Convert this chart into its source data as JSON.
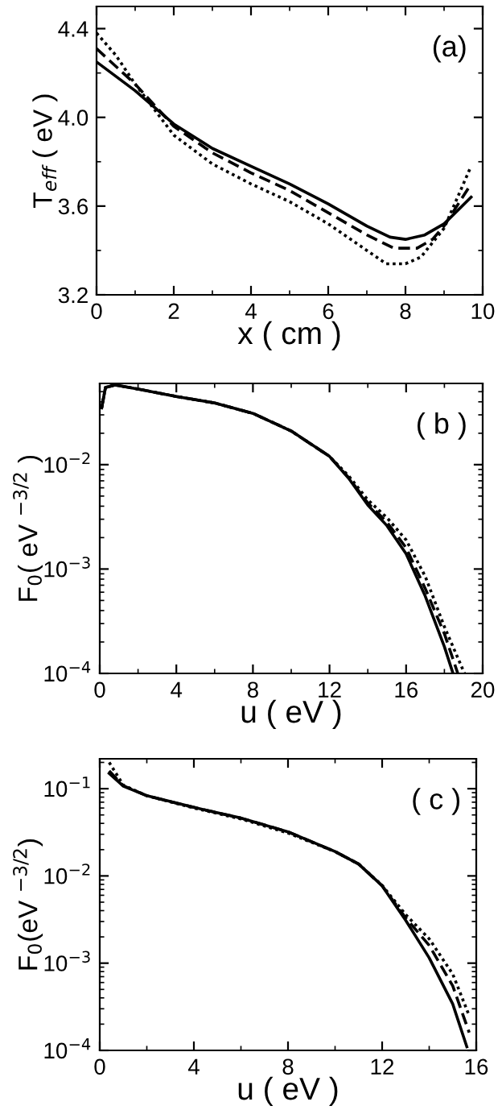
{
  "chart_data": [
    {
      "type": "line",
      "xlabel": "x ( cm )",
      "ylabel": "T$_{eff}$ ( eV )",
      "annotations": [
        "(a)"
      ],
      "xlim": [
        0,
        10
      ],
      "ylim": [
        3.2,
        4.5
      ],
      "xticks": [
        0,
        2,
        4,
        6,
        8,
        10
      ],
      "yticks": [
        3.2,
        3.6,
        {
          "value": 4.0,
          "label": "4.0"
        },
        4.4
      ],
      "grid": false,
      "marker": "none",
      "series": [
        {
          "color": "#000000",
          "line_style": "solid",
          "x": [
            0,
            1,
            2,
            3,
            4,
            5,
            6,
            7,
            7.6,
            8,
            8.5,
            9,
            9.7
          ],
          "values": [
            4.25,
            4.12,
            3.97,
            3.86,
            3.78,
            3.7,
            3.61,
            3.51,
            3.46,
            3.45,
            3.47,
            3.52,
            3.64
          ]
        },
        {
          "color": "#000000",
          "line_style": "dashed",
          "x": [
            0,
            1,
            2,
            3,
            4,
            5,
            6,
            7,
            7.7,
            8.3,
            8.7,
            9,
            9.7
          ],
          "values": [
            4.31,
            4.15,
            3.96,
            3.84,
            3.75,
            3.67,
            3.57,
            3.47,
            3.41,
            3.41,
            3.45,
            3.51,
            3.7
          ]
        },
        {
          "color": "#000000",
          "line_style": "dotted",
          "x": [
            0,
            0.5,
            1,
            2,
            3,
            4,
            5,
            6,
            7,
            7.5,
            8,
            8.4,
            9,
            9.7
          ],
          "values": [
            4.38,
            4.28,
            4.15,
            3.92,
            3.79,
            3.7,
            3.62,
            3.52,
            3.4,
            3.34,
            3.34,
            3.37,
            3.5,
            3.78
          ]
        }
      ]
    },
    {
      "type": "line",
      "xlabel": "u ( eV )",
      "ylabel": "F$_{0}$( eV $^{−3/2}$ )",
      "annotations": [
        "( b )"
      ],
      "log": "y",
      "xlim": [
        0,
        20
      ],
      "ylim": [
        0.0001,
        0.06
      ],
      "xticks": [
        0,
        4,
        8,
        12,
        16,
        20
      ],
      "yticks": [
        {
          "value": 0.0001,
          "label": "10$^{−4}$"
        },
        {
          "value": 0.001,
          "label": "10$^{−3}$"
        },
        {
          "value": 0.01,
          "label": "10$^{−2}$"
        }
      ],
      "grid": false,
      "marker": "none",
      "series": [
        {
          "color": "#000000",
          "line_style": "solid",
          "x": [
            0.1,
            0.3,
            0.8,
            2,
            4,
            6,
            8,
            10,
            12,
            13,
            14,
            15,
            16,
            17,
            18,
            18.45
          ],
          "values": [
            0.035,
            0.055,
            0.058,
            0.053,
            0.045,
            0.039,
            0.031,
            0.021,
            0.012,
            0.0074,
            0.0041,
            0.0026,
            0.0014,
            0.00055,
            0.00018,
            0.0001
          ]
        },
        {
          "color": "#000000",
          "line_style": "dashed",
          "x": [
            0.1,
            0.3,
            0.8,
            2,
            4,
            6,
            8,
            10,
            12,
            13,
            14,
            15,
            16,
            17,
            18,
            18.7
          ],
          "values": [
            0.035,
            0.055,
            0.058,
            0.053,
            0.045,
            0.039,
            0.031,
            0.021,
            0.012,
            0.0075,
            0.0043,
            0.0028,
            0.0016,
            0.00065,
            0.00024,
            0.0001
          ]
        },
        {
          "color": "#000000",
          "line_style": "dotted",
          "x": [
            0.1,
            0.3,
            0.8,
            2,
            4,
            6,
            8,
            10,
            12,
            13,
            14,
            15,
            16,
            17,
            18,
            19.05
          ],
          "values": [
            0.035,
            0.055,
            0.058,
            0.053,
            0.045,
            0.039,
            0.031,
            0.021,
            0.012,
            0.0078,
            0.0046,
            0.0031,
            0.0019,
            0.00085,
            0.00028,
            0.0001
          ]
        }
      ]
    },
    {
      "type": "line",
      "xlabel": "u ( eV )",
      "ylabel": "F$_{0}$(eV $^{−3/2}$)",
      "annotations": [
        "( c )"
      ],
      "log": "y",
      "xlim": [
        0,
        16
      ],
      "ylim": [
        0.0001,
        0.22
      ],
      "xticks": [
        0,
        4,
        8,
        12,
        16
      ],
      "yticks": [
        {
          "value": 0.0001,
          "label": "10$^{−4}$"
        },
        {
          "value": 0.001,
          "label": "10$^{−3}$"
        },
        {
          "value": 0.01,
          "label": "10$^{−2}$"
        },
        {
          "value": 0.1,
          "label": "10$^{−1}$"
        }
      ],
      "grid": false,
      "marker": "none",
      "series": [
        {
          "color": "#000000",
          "line_style": "solid",
          "x": [
            0.4,
            1,
            2,
            4,
            6,
            8,
            10,
            11,
            12,
            13,
            14,
            15,
            15.6
          ],
          "values": [
            0.15,
            0.107,
            0.083,
            0.061,
            0.046,
            0.032,
            0.019,
            0.0137,
            0.0077,
            0.0031,
            0.00115,
            0.00034,
            0.00011
          ]
        },
        {
          "color": "#000000",
          "line_style": "dashed",
          "x": [
            0.4,
            1,
            2,
            4,
            6,
            8,
            10,
            11,
            12,
            13,
            14,
            15,
            15.7
          ],
          "values": [
            0.16,
            0.108,
            0.083,
            0.061,
            0.046,
            0.032,
            0.019,
            0.0137,
            0.0077,
            0.0033,
            0.0016,
            0.00055,
            0.00016
          ]
        },
        {
          "color": "#000000",
          "line_style": "dotted",
          "x": [
            0.4,
            1,
            2,
            4,
            6,
            8,
            10,
            11,
            12,
            13,
            14,
            15,
            15.7
          ],
          "values": [
            0.2,
            0.11,
            0.083,
            0.06,
            0.045,
            0.031,
            0.019,
            0.0137,
            0.0078,
            0.0036,
            0.0019,
            0.00075,
            0.00025
          ]
        }
      ]
    }
  ]
}
